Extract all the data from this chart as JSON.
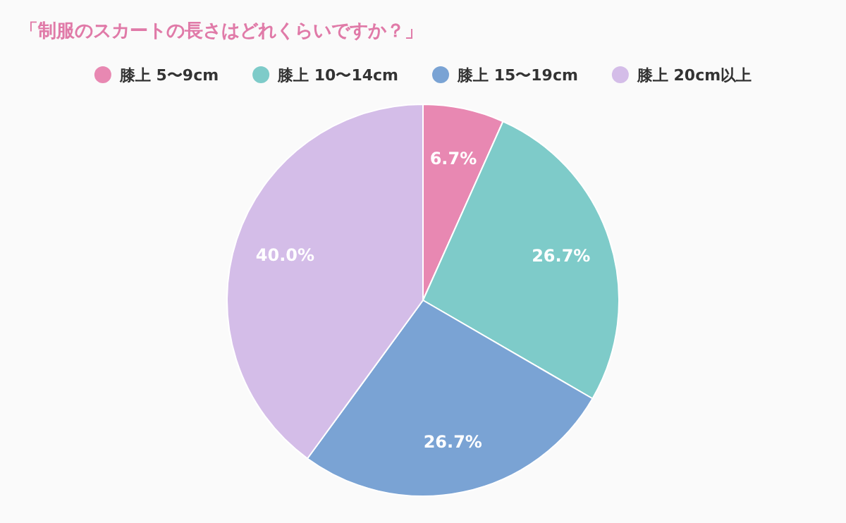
{
  "chart_data": {
    "type": "pie",
    "title": "「制服のスカートの長さはどれくらいですか？」",
    "categories": [
      "膝上 5〜9cm",
      "膝上 10〜14cm",
      "膝上 15〜19cm",
      "膝上 20cm以上"
    ],
    "values": [
      6.7,
      26.7,
      26.7,
      40.0
    ],
    "colors": [
      "#e888b2",
      "#7ecbc9",
      "#7aa3d4",
      "#d4bde8"
    ],
    "value_labels": [
      "6.7%",
      "26.7%",
      "26.7%",
      "40.0%"
    ],
    "legend": "top"
  }
}
